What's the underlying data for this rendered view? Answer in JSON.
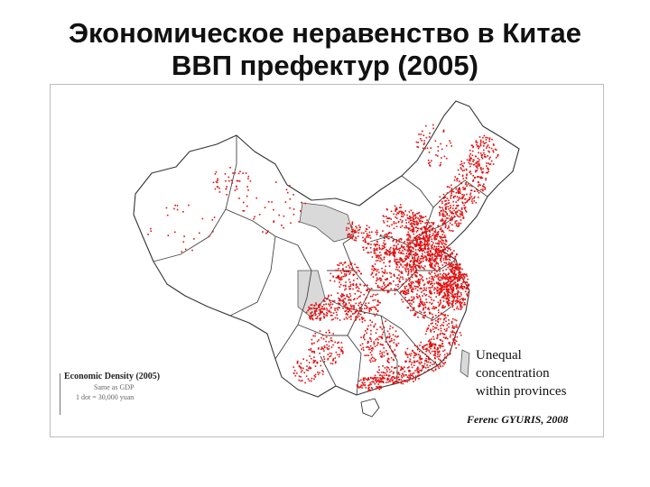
{
  "title": {
    "line1": "Экономическое неравенство в Китае",
    "line2": "ВВП префектур (2005)"
  },
  "map": {
    "legend": {
      "title": "Economic Density (2005)",
      "line1": "Same as GDP",
      "line2": "1 dot = 30,000 yuan"
    },
    "annotation_lines": [
      "Unequal",
      "concentration",
      "within provinces"
    ],
    "credit": "Ferenc GYURIS, 2008",
    "colors": {
      "dot": "#e01010",
      "province_border": "#333333",
      "empty_region": "#d9d9d9",
      "land": "#ffffff"
    }
  }
}
